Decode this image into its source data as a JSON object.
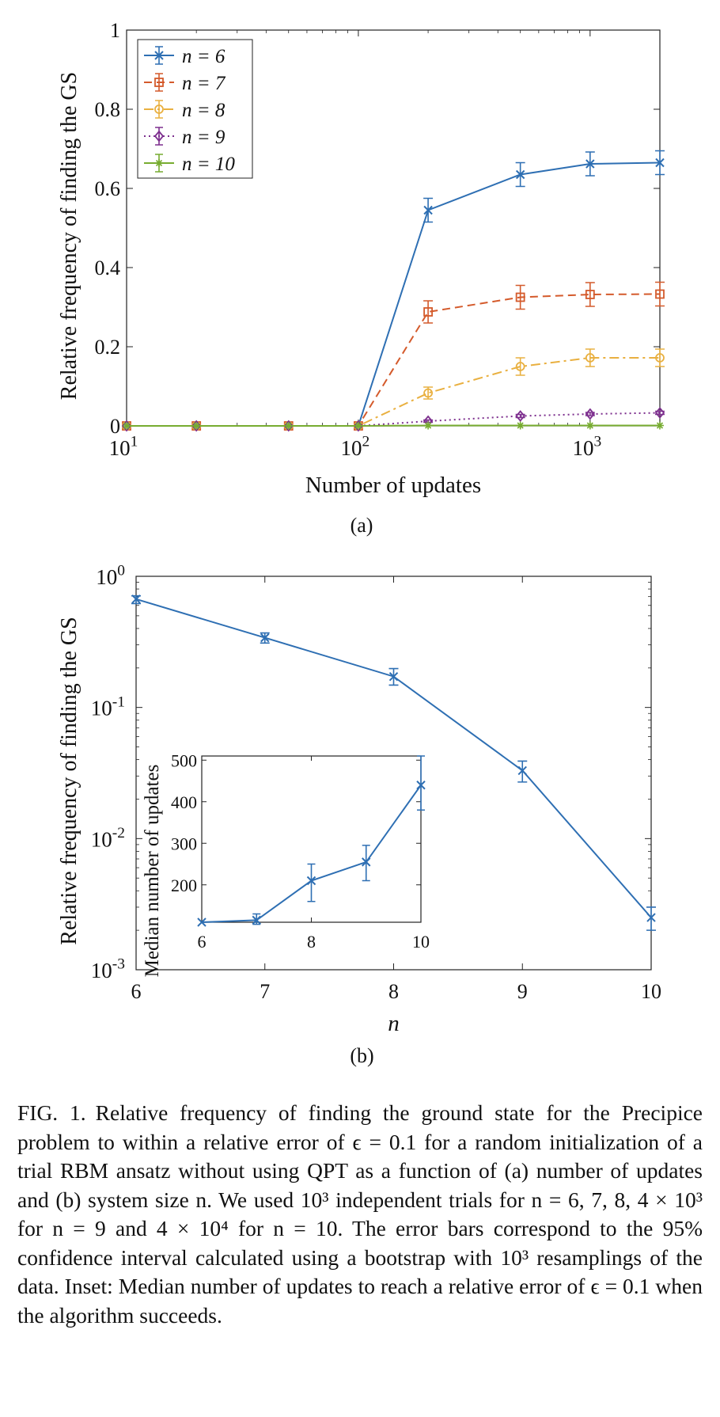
{
  "chart_data": [
    {
      "type": "line",
      "panel_label": "(a)",
      "xlabel": "Number of updates",
      "ylabel": "Relative frequency of finding the GS",
      "xscale": "log",
      "xlim": [
        10,
        2000
      ],
      "ylim": [
        0,
        1
      ],
      "xticks": [
        10,
        100,
        1000
      ],
      "xtick_labels": [
        {
          "base": "10",
          "exp": "1"
        },
        {
          "base": "10",
          "exp": "2"
        },
        {
          "base": "10",
          "exp": "3"
        }
      ],
      "yticks": [
        0,
        0.2,
        0.4,
        0.6,
        0.8,
        1
      ],
      "ytick_labels": [
        "0",
        "0.2",
        "0.4",
        "0.6",
        "0.8",
        "1"
      ],
      "grid": false,
      "legend_position": "top-left",
      "x": [
        10,
        20,
        50,
        100,
        200,
        500,
        1000,
        2000
      ],
      "series": [
        {
          "name": "n = 6",
          "color": "#2e6fb3",
          "dash": "solid",
          "marker": "x",
          "values": [
            0,
            0,
            0,
            0,
            0.545,
            0.635,
            0.662,
            0.665
          ],
          "err": [
            0,
            0,
            0,
            0,
            0.03,
            0.03,
            0.03,
            0.03
          ]
        },
        {
          "name": "n = 7",
          "color": "#d45a2b",
          "dash": "dashed",
          "marker": "square",
          "values": [
            0,
            0,
            0,
            0,
            0.288,
            0.325,
            0.332,
            0.333
          ],
          "err": [
            0,
            0,
            0,
            0,
            0.028,
            0.03,
            0.03,
            0.03
          ]
        },
        {
          "name": "n = 8",
          "color": "#e9b040",
          "dash": "dashdot",
          "marker": "circle",
          "values": [
            0,
            0,
            0,
            0,
            0.083,
            0.15,
            0.172,
            0.172
          ],
          "err": [
            0,
            0,
            0,
            0,
            0.015,
            0.022,
            0.022,
            0.022
          ]
        },
        {
          "name": "n = 9",
          "color": "#7d2f8e",
          "dash": "dotted",
          "marker": "diamond",
          "values": [
            0,
            0,
            0,
            0,
            0.012,
            0.025,
            0.03,
            0.033
          ],
          "err": [
            0,
            0,
            0,
            0,
            0.003,
            0.004,
            0.004,
            0.004
          ]
        },
        {
          "name": "n = 10",
          "color": "#77ac30",
          "dash": "solid",
          "marker": "star",
          "values": [
            0,
            0,
            0,
            0,
            0.001,
            0.001,
            0.001,
            0.001
          ],
          "err": [
            0,
            0,
            0,
            0,
            0,
            0,
            0,
            0
          ]
        }
      ]
    },
    {
      "type": "line",
      "panel_label": "(b)",
      "xlabel": "n",
      "ylabel": "Relative frequency of finding the GS",
      "yscale": "log",
      "xlim": [
        6,
        10
      ],
      "ylim": [
        0.001,
        1
      ],
      "xticks": [
        6,
        7,
        8,
        9,
        10
      ],
      "xtick_labels": [
        "6",
        "7",
        "8",
        "9",
        "10"
      ],
      "yticks": [
        0.001,
        0.01,
        0.1,
        1
      ],
      "ytick_labels": [
        {
          "base": "10",
          "exp": "-3"
        },
        {
          "base": "10",
          "exp": "-2"
        },
        {
          "base": "10",
          "exp": "-1"
        },
        {
          "base": "10",
          "exp": "0"
        }
      ],
      "grid": false,
      "x": [
        6,
        7,
        8,
        9,
        10
      ],
      "series": [
        {
          "color": "#2e6fb3",
          "marker": "x",
          "values": [
            0.67,
            0.34,
            0.172,
            0.033,
            0.0025
          ],
          "err_low": [
            0.62,
            0.31,
            0.148,
            0.027,
            0.002
          ],
          "err_high": [
            0.71,
            0.37,
            0.198,
            0.039,
            0.003
          ]
        }
      ],
      "inset": {
        "type": "line",
        "ylabel": "Median number of updates",
        "xlim": [
          6,
          10
        ],
        "ylim": [
          110,
          510
        ],
        "xticks": [
          6,
          8,
          10
        ],
        "xtick_labels": [
          "6",
          "8",
          "10"
        ],
        "yticks": [
          200,
          300,
          400,
          500
        ],
        "ytick_labels": [
          "200",
          "300",
          "400",
          "500"
        ],
        "x": [
          6,
          7,
          8,
          9,
          10
        ],
        "values": [
          110,
          115,
          210,
          255,
          440
        ],
        "err_low": [
          110,
          105,
          160,
          210,
          380
        ],
        "err_high": [
          110,
          130,
          250,
          295,
          510
        ]
      }
    }
  ],
  "caption": {
    "label": "FIG. 1.",
    "text": "Relative frequency of finding the ground state for the Precipice problem to within a relative error of ϵ = 0.1 for a random initialization of a trial RBM ansatz without using QPT as a function of (a) number of updates and (b) system size n. We used 10³ independent trials for n = 6, 7, 8, 4 × 10³ for n = 9 and 4 × 10⁴ for n = 10. The error bars correspond to the 95% confidence interval calculated using a bootstrap with 10³ resamplings of the data. Inset: Median number of updates to reach a relative error of ϵ = 0.1 when the algorithm succeeds."
  }
}
